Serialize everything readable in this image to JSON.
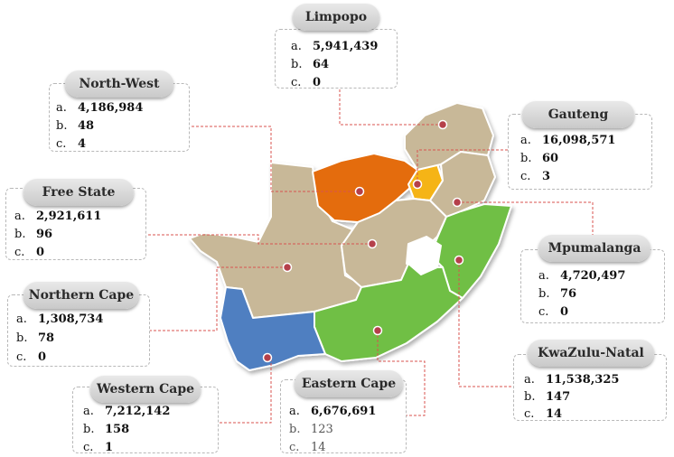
{
  "provinces": [
    {
      "id": "limpopo",
      "name": "Limpopo",
      "a": "5,941,439",
      "b": "64",
      "c": "0",
      "color": "#c8b898"
    },
    {
      "id": "north-west",
      "name": "North-West",
      "a": "4,186,984",
      "b": "48",
      "c": "4",
      "color": "#e46c0a"
    },
    {
      "id": "gauteng",
      "name": "Gauteng",
      "a": "16,098,571",
      "b": "60",
      "c": "3",
      "color": "#f5b417"
    },
    {
      "id": "free-state",
      "name": "Free State",
      "a": "2,921,611",
      "b": "96",
      "c": "0",
      "color": "#c8b898"
    },
    {
      "id": "mpumalanga",
      "name": "Mpumalanga",
      "a": "4,720,497",
      "b": "76",
      "c": "0",
      "color": "#c8b898"
    },
    {
      "id": "northern-cape",
      "name": "Northern Cape",
      "a": "1,308,734",
      "b": "78",
      "c": "0",
      "color": "#c8b898"
    },
    {
      "id": "kwazulu-natal",
      "name": "KwaZulu-Natal",
      "a": "11,538,325",
      "b": "147",
      "c": "14",
      "color": "#6fbf44"
    },
    {
      "id": "western-cape",
      "name": "Western Cape",
      "a": "7,212,142",
      "b": "158",
      "c": "1",
      "color": "#4f7fc1"
    },
    {
      "id": "eastern-cape",
      "name": "Eastern Cape",
      "a": "6,676,691",
      "b": "123",
      "c": "14",
      "color": "#6fbf44"
    }
  ],
  "row_keys": {
    "a": "a.",
    "b": "b.",
    "c": "c."
  },
  "colors": {
    "land": "#c8b898",
    "border": "#ffffff",
    "leader": "#d9534f",
    "marker": "#b5404a"
  }
}
